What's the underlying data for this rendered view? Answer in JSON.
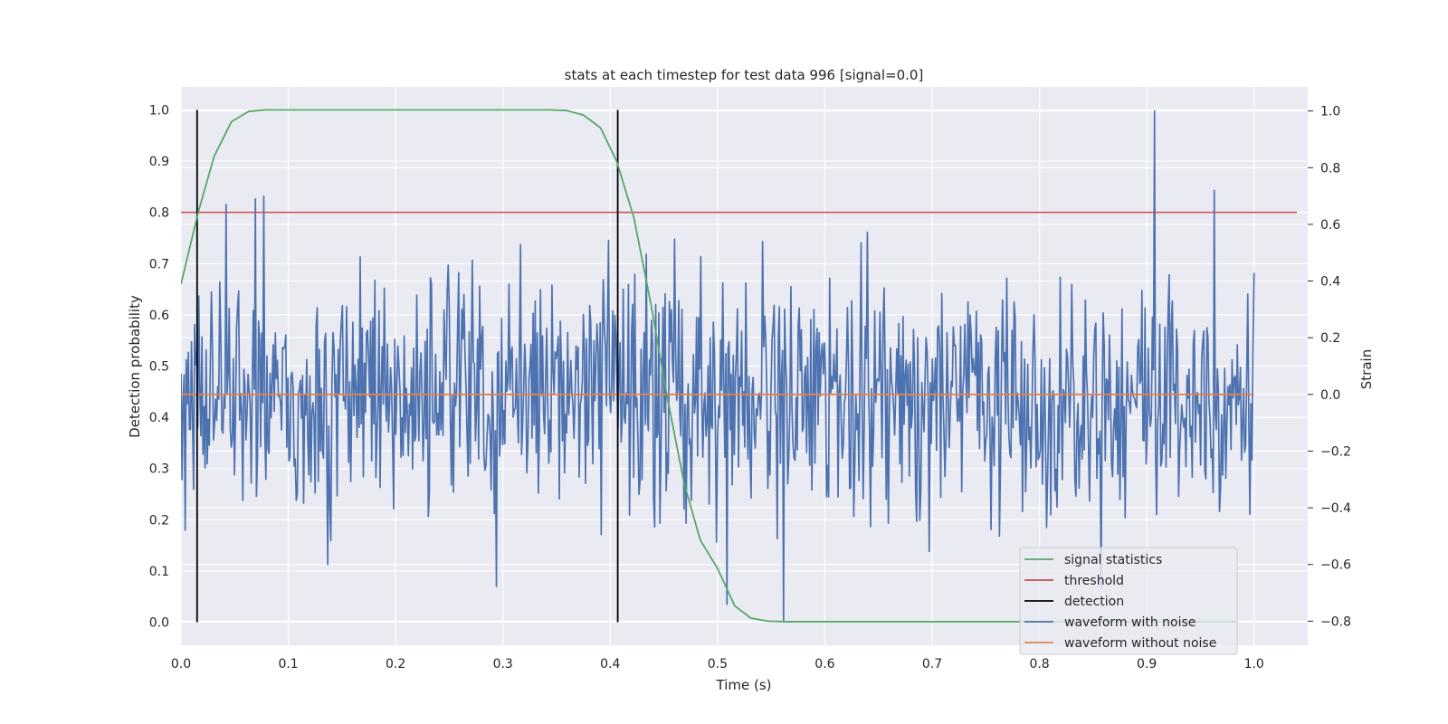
{
  "chart_data": {
    "type": "line",
    "title": "stats at each timestep for test data 996 [signal=0.0]",
    "xlabel": "Time (s)",
    "ylabel_left": "Detection probability",
    "ylabel_right": "Strain",
    "xlim": [
      0.0,
      1.05
    ],
    "ylim_left": [
      -0.045,
      1.045
    ],
    "ylim_right": [
      -0.885,
      1.085
    ],
    "x_ticks": [
      "0.0",
      "0.1",
      "0.2",
      "0.3",
      "0.4",
      "0.5",
      "0.6",
      "0.7",
      "0.8",
      "0.9",
      "1.0"
    ],
    "y_ticks_left": [
      "0.0",
      "0.1",
      "0.2",
      "0.3",
      "0.4",
      "0.5",
      "0.6",
      "0.7",
      "0.8",
      "0.9",
      "1.0"
    ],
    "y_ticks_right": [
      "−0.8",
      "−0.6",
      "−0.4",
      "−0.2",
      "0.0",
      "0.2",
      "0.4",
      "0.6",
      "0.8",
      "1.0"
    ],
    "grid": true,
    "legend_position": "lower-right",
    "series": [
      {
        "name": "signal statistics",
        "axis": "left",
        "color": "#55a868",
        "x": [
          0.0,
          0.016,
          0.031,
          0.047,
          0.063,
          0.078,
          0.094,
          0.109,
          0.125,
          0.141,
          0.156,
          0.172,
          0.188,
          0.203,
          0.219,
          0.234,
          0.25,
          0.266,
          0.281,
          0.297,
          0.313,
          0.328,
          0.344,
          0.359,
          0.375,
          0.391,
          0.406,
          0.422,
          0.438,
          0.453,
          0.469,
          0.484,
          0.5,
          0.516,
          0.531,
          0.547,
          0.563,
          0.578,
          0.594,
          0.609,
          0.625,
          0.641,
          0.656,
          0.672,
          0.688,
          0.703,
          0.719,
          0.734,
          0.75,
          0.766,
          0.781,
          0.797,
          0.813,
          0.828,
          0.844,
          0.859,
          0.875,
          0.891,
          0.906,
          0.922,
          0.938,
          0.953,
          0.969,
          0.984
        ],
        "y": [
          0.66,
          0.8,
          0.91,
          0.977,
          0.997,
          1.0,
          1.0,
          1.0,
          1.0,
          1.0,
          1.0,
          1.0,
          1.0,
          1.0,
          1.0,
          1.0,
          1.0,
          1.0,
          1.0,
          1.0,
          1.0,
          1.0,
          1.0,
          0.999,
          0.99,
          0.965,
          0.9,
          0.79,
          0.62,
          0.44,
          0.27,
          0.16,
          0.105,
          0.032,
          0.008,
          0.002,
          0.001,
          0.001,
          0.001,
          0.001,
          0.001,
          0.001,
          0.001,
          0.001,
          0.001,
          0.001,
          0.001,
          0.001,
          0.001,
          0.001,
          0.001,
          0.001,
          0.001,
          0.001,
          0.001,
          0.001,
          0.001,
          0.001,
          0.001,
          0.001,
          0.001,
          0.001,
          0.001,
          0.001
        ]
      },
      {
        "name": "threshold",
        "axis": "left",
        "color": "#c44e52",
        "value": 0.8
      },
      {
        "name": "detection",
        "axis": "left",
        "color": "#000000",
        "x_positions": [
          0.015,
          0.407
        ],
        "y_range": [
          0.0,
          1.0
        ]
      },
      {
        "name": "waveform with noise",
        "axis": "right",
        "color": "#4c72b0",
        "x_range": [
          0.0,
          1.0
        ],
        "amplitude_range": [
          -0.8,
          1.0
        ],
        "notes_peaks": [
          {
            "x": 0.907,
            "y": 1.0
          },
          {
            "x": 0.562,
            "y": -0.8
          },
          {
            "x": 0.963,
            "y": 0.72
          },
          {
            "x": 0.069,
            "y": 0.69
          },
          {
            "x": 0.042,
            "y": 0.67
          },
          {
            "x": 0.137,
            "y": -0.6
          }
        ]
      },
      {
        "name": "waveform without noise",
        "axis": "right",
        "color": "#dd8452",
        "value": 0.0
      }
    ]
  }
}
